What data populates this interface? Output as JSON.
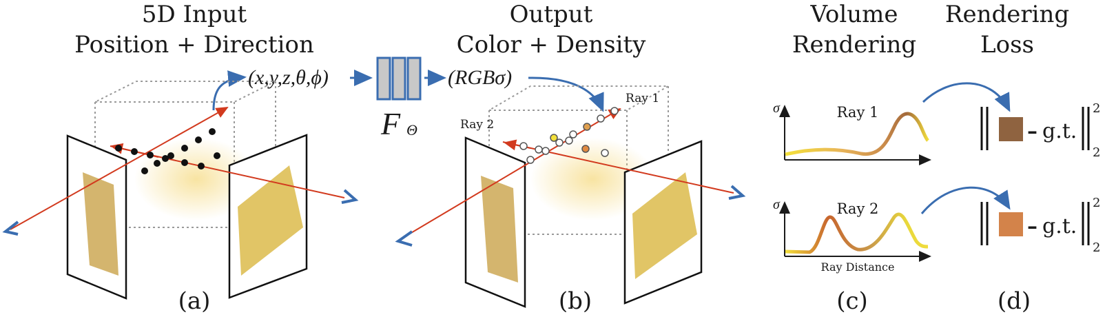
{
  "panels": {
    "a": {
      "title_line1": "5D Input",
      "title_line2": "Position + Direction",
      "label": "(a)"
    },
    "b": {
      "title_line1": "Output",
      "title_line2": "Color + Density",
      "label": "(b)",
      "ray1": "Ray 1",
      "ray2": "Ray 2"
    },
    "c": {
      "title_line1": "Volume",
      "title_line2": "Rendering",
      "label": "(c)",
      "plot1_title": "Ray 1",
      "plot2_title": "Ray 2",
      "y_axis": "σ",
      "x_axis": "Ray Distance"
    },
    "d": {
      "title_line1": "Rendering",
      "title_line2": "Loss",
      "label": "(d)",
      "gt": "g.t.",
      "minus": "–",
      "superscript": "2",
      "subscript": "2"
    }
  },
  "network": {
    "input": "(x,y,z,θ,ϕ)",
    "output": "(RGBσ)",
    "function": "F",
    "function_sub": "Θ"
  },
  "colors": {
    "arrow_blue": "#3a6db0",
    "ray_red": "#d23a1e",
    "network_fill": "#c8c8c8",
    "ray1_color": "#8f6340",
    "ray2_color": "#d3834a",
    "curve_yellow": "#f0dc3c"
  }
}
